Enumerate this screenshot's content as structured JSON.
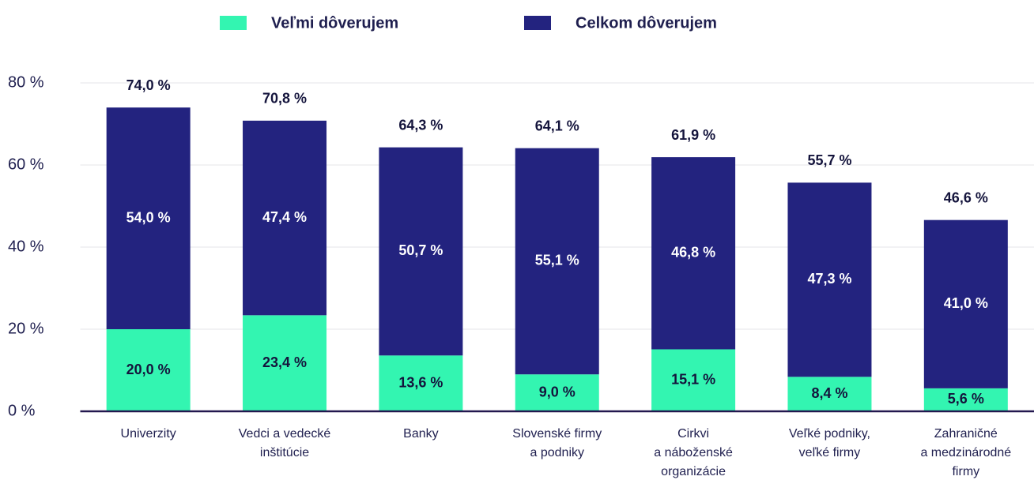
{
  "chart_data": {
    "type": "stacked_bar",
    "categories": [
      "Univerzity",
      "Vedci a vedecké\ninštitúcie",
      "Banky",
      "Slovenské firmy\na podniky",
      "Cirkvi\na náboženské\norganizácie",
      "Veľké podniky,\nveľké firmy",
      "Zahraničné\na medzinárodné\nfirmy"
    ],
    "series": [
      {
        "name": "Veľmi dôverujem",
        "color": "#33f5b1",
        "label_color": "#14143c",
        "values": [
          20.0,
          23.4,
          13.6,
          9.0,
          15.1,
          8.4,
          5.6
        ],
        "value_labels": [
          "20,0 %",
          "23,4 %",
          "13,6 %",
          "9,0 %",
          "15,1 %",
          "8,4 %",
          "5,6 %"
        ]
      },
      {
        "name": "Celkom dôverujem",
        "color": "#23237f",
        "label_color": "#ffffff",
        "values": [
          54.0,
          47.4,
          50.7,
          55.1,
          46.8,
          47.3,
          41.0
        ],
        "value_labels": [
          "54,0 %",
          "47,4 %",
          "50,7 %",
          "55,1 %",
          "46,8 %",
          "47,3 %",
          "41,0 %"
        ]
      }
    ],
    "totals": [
      74.0,
      70.8,
      64.3,
      64.1,
      61.9,
      55.7,
      46.6
    ],
    "total_labels": [
      "74,0 %",
      "70,8 %",
      "64,3 %",
      "64,1 %",
      "61,9 %",
      "55,7 %",
      "46,6 %"
    ],
    "ylim": [
      0,
      80
    ],
    "yticks": [
      {
        "value": 0,
        "label": "0 %"
      },
      {
        "value": 20,
        "label": "20 %"
      },
      {
        "value": 40,
        "label": "40 %"
      },
      {
        "value": 60,
        "label": "60 %"
      },
      {
        "value": 80,
        "label": "80 %"
      }
    ],
    "grid": true,
    "legend": "top"
  }
}
